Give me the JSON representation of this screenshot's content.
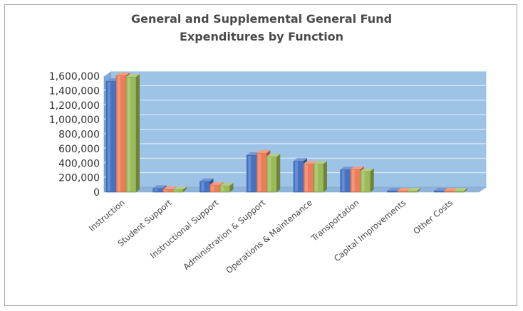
{
  "chart_data": {
    "type": "bar",
    "title_line1": "General and Supplemental General Fund",
    "title_line2": "Expenditures by Function",
    "xlabel": "",
    "ylabel": "",
    "ylim": [
      0,
      1600000
    ],
    "yticks": [
      "0",
      "200,000",
      "400,000",
      "600,000",
      "800,000",
      "1,000,000",
      "1,200,000",
      "1,400,000",
      "1,600,000"
    ],
    "categories": [
      "Instruction",
      "Student Support",
      "Instructional Support",
      "Administration & Support",
      "Operations & Maintenance",
      "Transportation",
      "Capital Improvements",
      "Other Costs"
    ],
    "series": [
      {
        "color": "#4472c4",
        "values": [
          1530000,
          55000,
          150000,
          510000,
          430000,
          310000,
          5000,
          5000
        ]
      },
      {
        "color": "#ed7d5a",
        "values": [
          1610000,
          40000,
          100000,
          540000,
          390000,
          315000,
          5000,
          8000
        ]
      },
      {
        "color": "#9bbb59",
        "values": [
          1590000,
          35000,
          90000,
          490000,
          390000,
          290000,
          5000,
          10000
        ]
      }
    ],
    "grid": true,
    "legend": "none",
    "style": "3d-clustered-column",
    "wall_color": "#9dc3e6",
    "floor_color": "#8fb4d8"
  }
}
